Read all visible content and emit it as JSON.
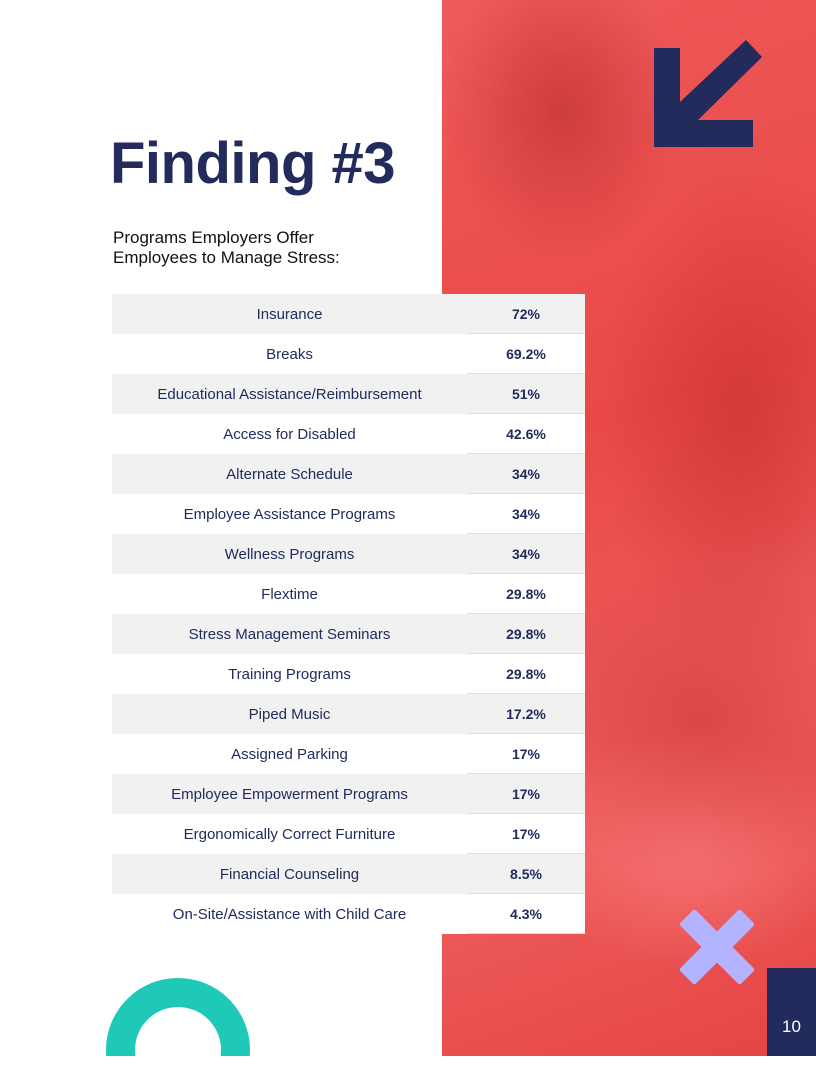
{
  "title": "Finding #3",
  "subtitle_line1": "Programs Employers Offer",
  "subtitle_line2": "Employees to Manage Stress:",
  "rows": [
    {
      "label": "Insurance",
      "value": "72%"
    },
    {
      "label": "Breaks",
      "value": "69.2%"
    },
    {
      "label": "Educational Assistance/Reimbursement",
      "value": "51%"
    },
    {
      "label": "Access for Disabled",
      "value": "42.6%"
    },
    {
      "label": "Alternate Schedule",
      "value": "34%"
    },
    {
      "label": "Employee Assistance Programs",
      "value": "34%"
    },
    {
      "label": "Wellness Programs",
      "value": "34%"
    },
    {
      "label": "Flextime",
      "value": "29.8%"
    },
    {
      "label": "Stress Management Seminars",
      "value": "29.8%"
    },
    {
      "label": "Training Programs",
      "value": "29.8%"
    },
    {
      "label": "Piped Music",
      "value": "17.2%"
    },
    {
      "label": "Assigned Parking",
      "value": "17%"
    },
    {
      "label": "Employee Empowerment Programs",
      "value": "17%"
    },
    {
      "label": "Ergonomically Correct Furniture",
      "value": "17%"
    },
    {
      "label": "Financial Counseling",
      "value": "8.5%"
    },
    {
      "label": "On-Site/Assistance with Child Care",
      "value": "4.3%"
    }
  ],
  "page_number": "10",
  "colors": {
    "navy": "#232a5c",
    "red": "#e84848",
    "teal": "#1ec9b7",
    "lavender": "#b3b3ff"
  },
  "icons": [
    "arrow-down-left-icon",
    "x-cross-icon",
    "ring-shape"
  ]
}
